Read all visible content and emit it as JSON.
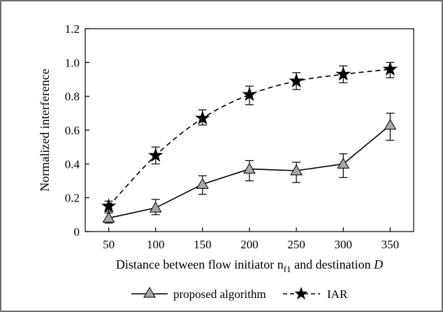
{
  "chart_data": {
    "type": "line",
    "title": "",
    "xlabel_prefix": "Distance between flow initiator n",
    "xlabel_subscript": "f1",
    "xlabel_suffix": " and destination ",
    "xlabel_italic": "D",
    "ylabel": "Normalized interference",
    "x": [
      50,
      100,
      150,
      200,
      250,
      300,
      350
    ],
    "x_ticks": [
      "50",
      "100",
      "150",
      "200",
      "250",
      "300",
      "350"
    ],
    "y_ticks": [
      "0",
      "0.2",
      "0.4",
      "0.6",
      "0.8",
      "1.0",
      "1.2"
    ],
    "ylim": [
      0,
      1.2
    ],
    "grid": false,
    "legend_position": "bottom",
    "series": [
      {
        "name": "proposed algorithm",
        "style": "solid",
        "marker": "triangle",
        "color": "#000000",
        "marker_fill": "#a6a6a6",
        "values": [
          0.08,
          0.14,
          0.28,
          0.37,
          0.36,
          0.4,
          0.63
        ],
        "err_low": [
          0.05,
          0.1,
          0.22,
          0.3,
          0.29,
          0.32,
          0.54
        ],
        "err_high": [
          0.12,
          0.19,
          0.33,
          0.42,
          0.41,
          0.46,
          0.7
        ]
      },
      {
        "name": "IAR",
        "style": "dashed",
        "marker": "star",
        "color": "#000000",
        "marker_fill": "#000000",
        "values": [
          0.15,
          0.45,
          0.67,
          0.81,
          0.89,
          0.93,
          0.96
        ],
        "err_low": [
          0.11,
          0.4,
          0.63,
          0.75,
          0.84,
          0.88,
          0.91
        ],
        "err_high": [
          0.18,
          0.5,
          0.72,
          0.86,
          0.94,
          0.98,
          1.0
        ]
      }
    ]
  }
}
